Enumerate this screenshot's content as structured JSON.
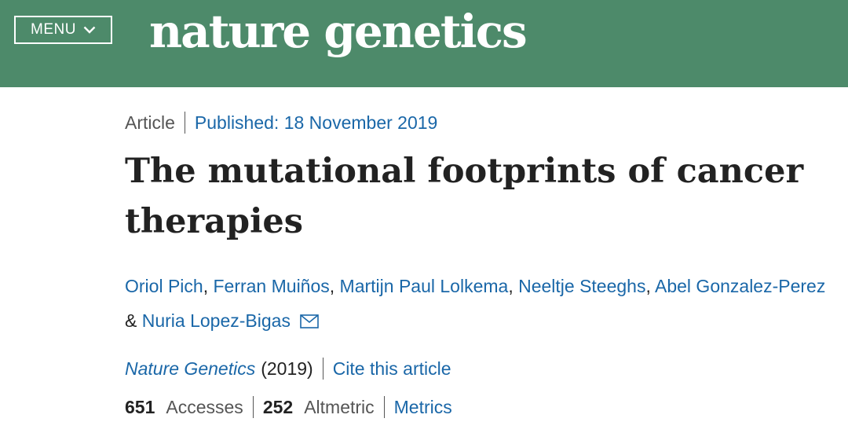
{
  "header": {
    "menu_label": "MENU",
    "logo_text": "nature genetics",
    "background_color": "#4d8a6a"
  },
  "article": {
    "type_label": "Article",
    "published": "Published: 18 November 2019",
    "title": "The mutational footprints of cancer therapies",
    "authors": [
      "Oriol Pich",
      "Ferran Muiños",
      "Martijn Paul Lolkema",
      "Neeltje Steeghs",
      "Abel Gonzalez-Perez",
      "Nuria Lopez-Bigas"
    ],
    "separator_comma": ",",
    "separator_amp": "&",
    "journal_name": "Nature Genetics",
    "journal_year": "(2019)",
    "cite_label": "Cite this article",
    "accesses_count": "651",
    "accesses_label": "Accesses",
    "altmetric_count": "252",
    "altmetric_label": "Altmetric",
    "metrics_label": "Metrics",
    "link_color": "#1a67a8"
  }
}
